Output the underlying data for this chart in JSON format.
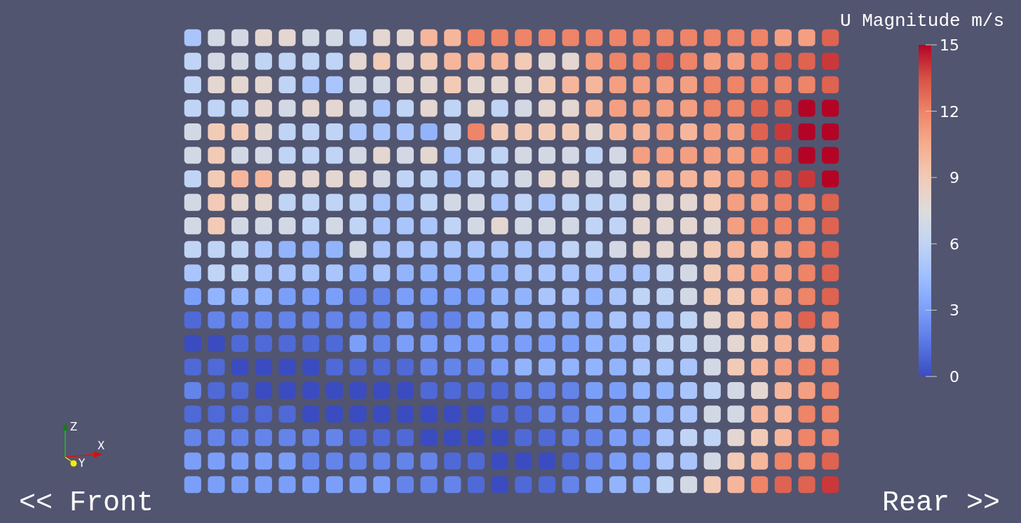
{
  "chart_data": {
    "type": "heatmap",
    "categories": [
      null,
      null,
      null,
      null,
      null,
      null,
      null,
      null,
      null,
      null,
      null,
      null,
      null,
      null,
      null,
      null,
      null,
      null,
      null,
      null,
      null,
      null,
      null,
      null,
      null,
      null,
      null,
      null
    ],
    "y_categories": [
      null,
      null,
      null,
      null,
      null,
      null,
      null,
      null,
      null,
      null,
      null,
      null,
      null,
      null,
      null,
      null,
      null,
      null,
      null,
      null
    ],
    "cells": [
      [
        5,
        7,
        7,
        8,
        8,
        7,
        7,
        6,
        8,
        8,
        10,
        10,
        12,
        12,
        12,
        12,
        12,
        12,
        12,
        12,
        12,
        12,
        12,
        12,
        12,
        11,
        11,
        13
      ],
      [
        6,
        7,
        7,
        6,
        6,
        6,
        6,
        8,
        9,
        8,
        9,
        10,
        10,
        10,
        9,
        8,
        8,
        11,
        12,
        12,
        13,
        12,
        11,
        11,
        12,
        13,
        13,
        14
      ],
      [
        6,
        8,
        8,
        8,
        6,
        5,
        5,
        7,
        7,
        8,
        8,
        9,
        8,
        8,
        8,
        9,
        10,
        10,
        11,
        11,
        11,
        11,
        12,
        12,
        12,
        12,
        12,
        13
      ],
      [
        6,
        6,
        6,
        8,
        7,
        8,
        8,
        7,
        5,
        6,
        8,
        6,
        8,
        6,
        7,
        8,
        8,
        10,
        11,
        11,
        11,
        11,
        12,
        12,
        13,
        13,
        15,
        15
      ],
      [
        7,
        9,
        9,
        8,
        6,
        6,
        6,
        5,
        5,
        5,
        4,
        6,
        12,
        9,
        9,
        9,
        9,
        8,
        10,
        10,
        11,
        10,
        11,
        11,
        13,
        14,
        15,
        15
      ],
      [
        7,
        9,
        7,
        7,
        6,
        6,
        6,
        7,
        8,
        7,
        8,
        5,
        6,
        6,
        7,
        7,
        7,
        6,
        7,
        11,
        11,
        11,
        11,
        11,
        12,
        13,
        15,
        15
      ],
      [
        6,
        9,
        10,
        10,
        8,
        8,
        8,
        8,
        7,
        6,
        6,
        5,
        6,
        6,
        7,
        8,
        8,
        7,
        7,
        9,
        10,
        10,
        10,
        11,
        12,
        13,
        14,
        15
      ],
      [
        7,
        9,
        8,
        8,
        6,
        6,
        6,
        6,
        5,
        5,
        6,
        7,
        7,
        5,
        6,
        5,
        6,
        6,
        6,
        8,
        8,
        8,
        9,
        11,
        11,
        12,
        12,
        13
      ],
      [
        7,
        9,
        7,
        7,
        7,
        6,
        7,
        6,
        5,
        5,
        5,
        6,
        7,
        8,
        7,
        7,
        7,
        6,
        6,
        8,
        8,
        8,
        8,
        11,
        12,
        12,
        12,
        13
      ],
      [
        6,
        6,
        6,
        5,
        4,
        4,
        4,
        7,
        5,
        5,
        5,
        5,
        5,
        5,
        5,
        5,
        6,
        6,
        7,
        8,
        8,
        8,
        9,
        10,
        10,
        11,
        12,
        13
      ],
      [
        5,
        6,
        6,
        5,
        5,
        5,
        5,
        4,
        5,
        4,
        4,
        4,
        4,
        4,
        5,
        5,
        5,
        5,
        5,
        5,
        6,
        7,
        9,
        10,
        11,
        11,
        12,
        13
      ],
      [
        3,
        4,
        4,
        4,
        3,
        3,
        3,
        2,
        2,
        3,
        3,
        3,
        3,
        4,
        4,
        5,
        5,
        4,
        5,
        6,
        6,
        7,
        9,
        9,
        10,
        11,
        12,
        13
      ],
      [
        1,
        2,
        2,
        2,
        2,
        2,
        2,
        2,
        2,
        3,
        2,
        2,
        3,
        4,
        4,
        4,
        4,
        4,
        5,
        5,
        5,
        6,
        8,
        9,
        10,
        11,
        13,
        12
      ],
      [
        0,
        0,
        1,
        1,
        1,
        1,
        1,
        3,
        2,
        3,
        3,
        3,
        3,
        3,
        3,
        3,
        3,
        4,
        4,
        5,
        6,
        6,
        7,
        8,
        9,
        10,
        10,
        11
      ],
      [
        1,
        1,
        0,
        0,
        0,
        0,
        1,
        1,
        1,
        1,
        2,
        2,
        2,
        3,
        4,
        4,
        4,
        4,
        4,
        5,
        5,
        5,
        7,
        9,
        10,
        11,
        12,
        12
      ],
      [
        2,
        1,
        1,
        0,
        0,
        0,
        0,
        0,
        0,
        0,
        1,
        1,
        1,
        1,
        2,
        2,
        2,
        3,
        3,
        4,
        4,
        5,
        6,
        7,
        8,
        10,
        11,
        12
      ],
      [
        1,
        1,
        1,
        1,
        1,
        0,
        0,
        0,
        0,
        0,
        0,
        0,
        0,
        1,
        1,
        2,
        2,
        3,
        3,
        4,
        4,
        5,
        7,
        7,
        10,
        10,
        12,
        12
      ],
      [
        2,
        2,
        2,
        2,
        2,
        2,
        2,
        1,
        1,
        1,
        0,
        0,
        0,
        0,
        1,
        1,
        2,
        2,
        3,
        3,
        5,
        6,
        6,
        8,
        9,
        10,
        12,
        12
      ],
      [
        3,
        3,
        3,
        3,
        3,
        2,
        2,
        2,
        2,
        2,
        2,
        1,
        1,
        0,
        0,
        0,
        1,
        2,
        3,
        3,
        5,
        5,
        7,
        9,
        10,
        12,
        12,
        13
      ],
      [
        3,
        3,
        3,
        3,
        3,
        3,
        3,
        3,
        3,
        2,
        2,
        2,
        1,
        0,
        1,
        1,
        2,
        3,
        4,
        4,
        6,
        7,
        9,
        10,
        12,
        13,
        13,
        14
      ]
    ],
    "clim": [
      0,
      15
    ],
    "cticks": [
      0,
      3,
      6,
      9,
      12,
      15
    ],
    "clabel": "U Magnitude m/s",
    "annotations": [
      "<< Front",
      "Rear >>",
      "Z",
      "X",
      "Y"
    ]
  }
}
